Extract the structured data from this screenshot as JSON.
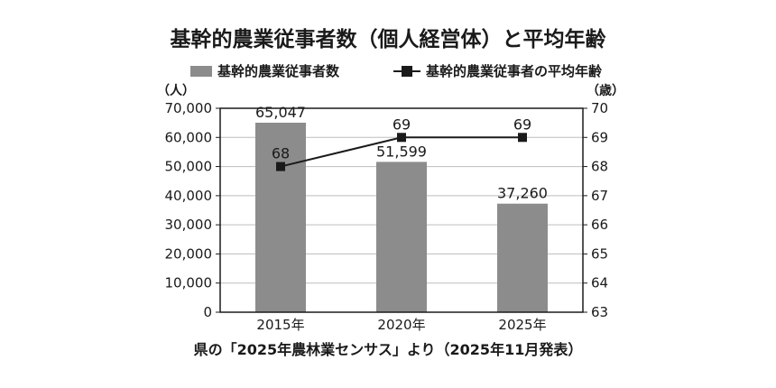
{
  "chart_data": {
    "type": "bar+line",
    "title": "基幹的農業従事者数（個人経営体）と平均年齢",
    "categories": [
      "2015年",
      "2020年",
      "2025年"
    ],
    "series": [
      {
        "name": "基幹的農業従事者数",
        "type": "bar",
        "axis": "left",
        "values": [
          65047,
          51599,
          37260
        ],
        "labels": [
          "65,047",
          "51,599",
          "37,260"
        ],
        "color": "#8c8c8c"
      },
      {
        "name": "基幹的農業従事者の平均年齢",
        "type": "line",
        "axis": "right",
        "values": [
          68,
          69,
          69
        ],
        "labels": [
          "68",
          "69",
          "69"
        ],
        "color": "#1a1a1a"
      }
    ],
    "y_left": {
      "unit": "（人）",
      "range": [
        0,
        70000
      ],
      "ticks": [
        "0",
        "10,000",
        "20,000",
        "30,000",
        "40,000",
        "50,000",
        "60,000",
        "70,000"
      ]
    },
    "y_right": {
      "unit": "（歳）",
      "range": [
        63,
        70
      ],
      "ticks": [
        "63",
        "64",
        "65",
        "66",
        "67",
        "68",
        "69",
        "70"
      ]
    },
    "legend_position": "top",
    "grid": true,
    "source": "県の「2025年農林業センサス」より（2025年11月発表）"
  }
}
